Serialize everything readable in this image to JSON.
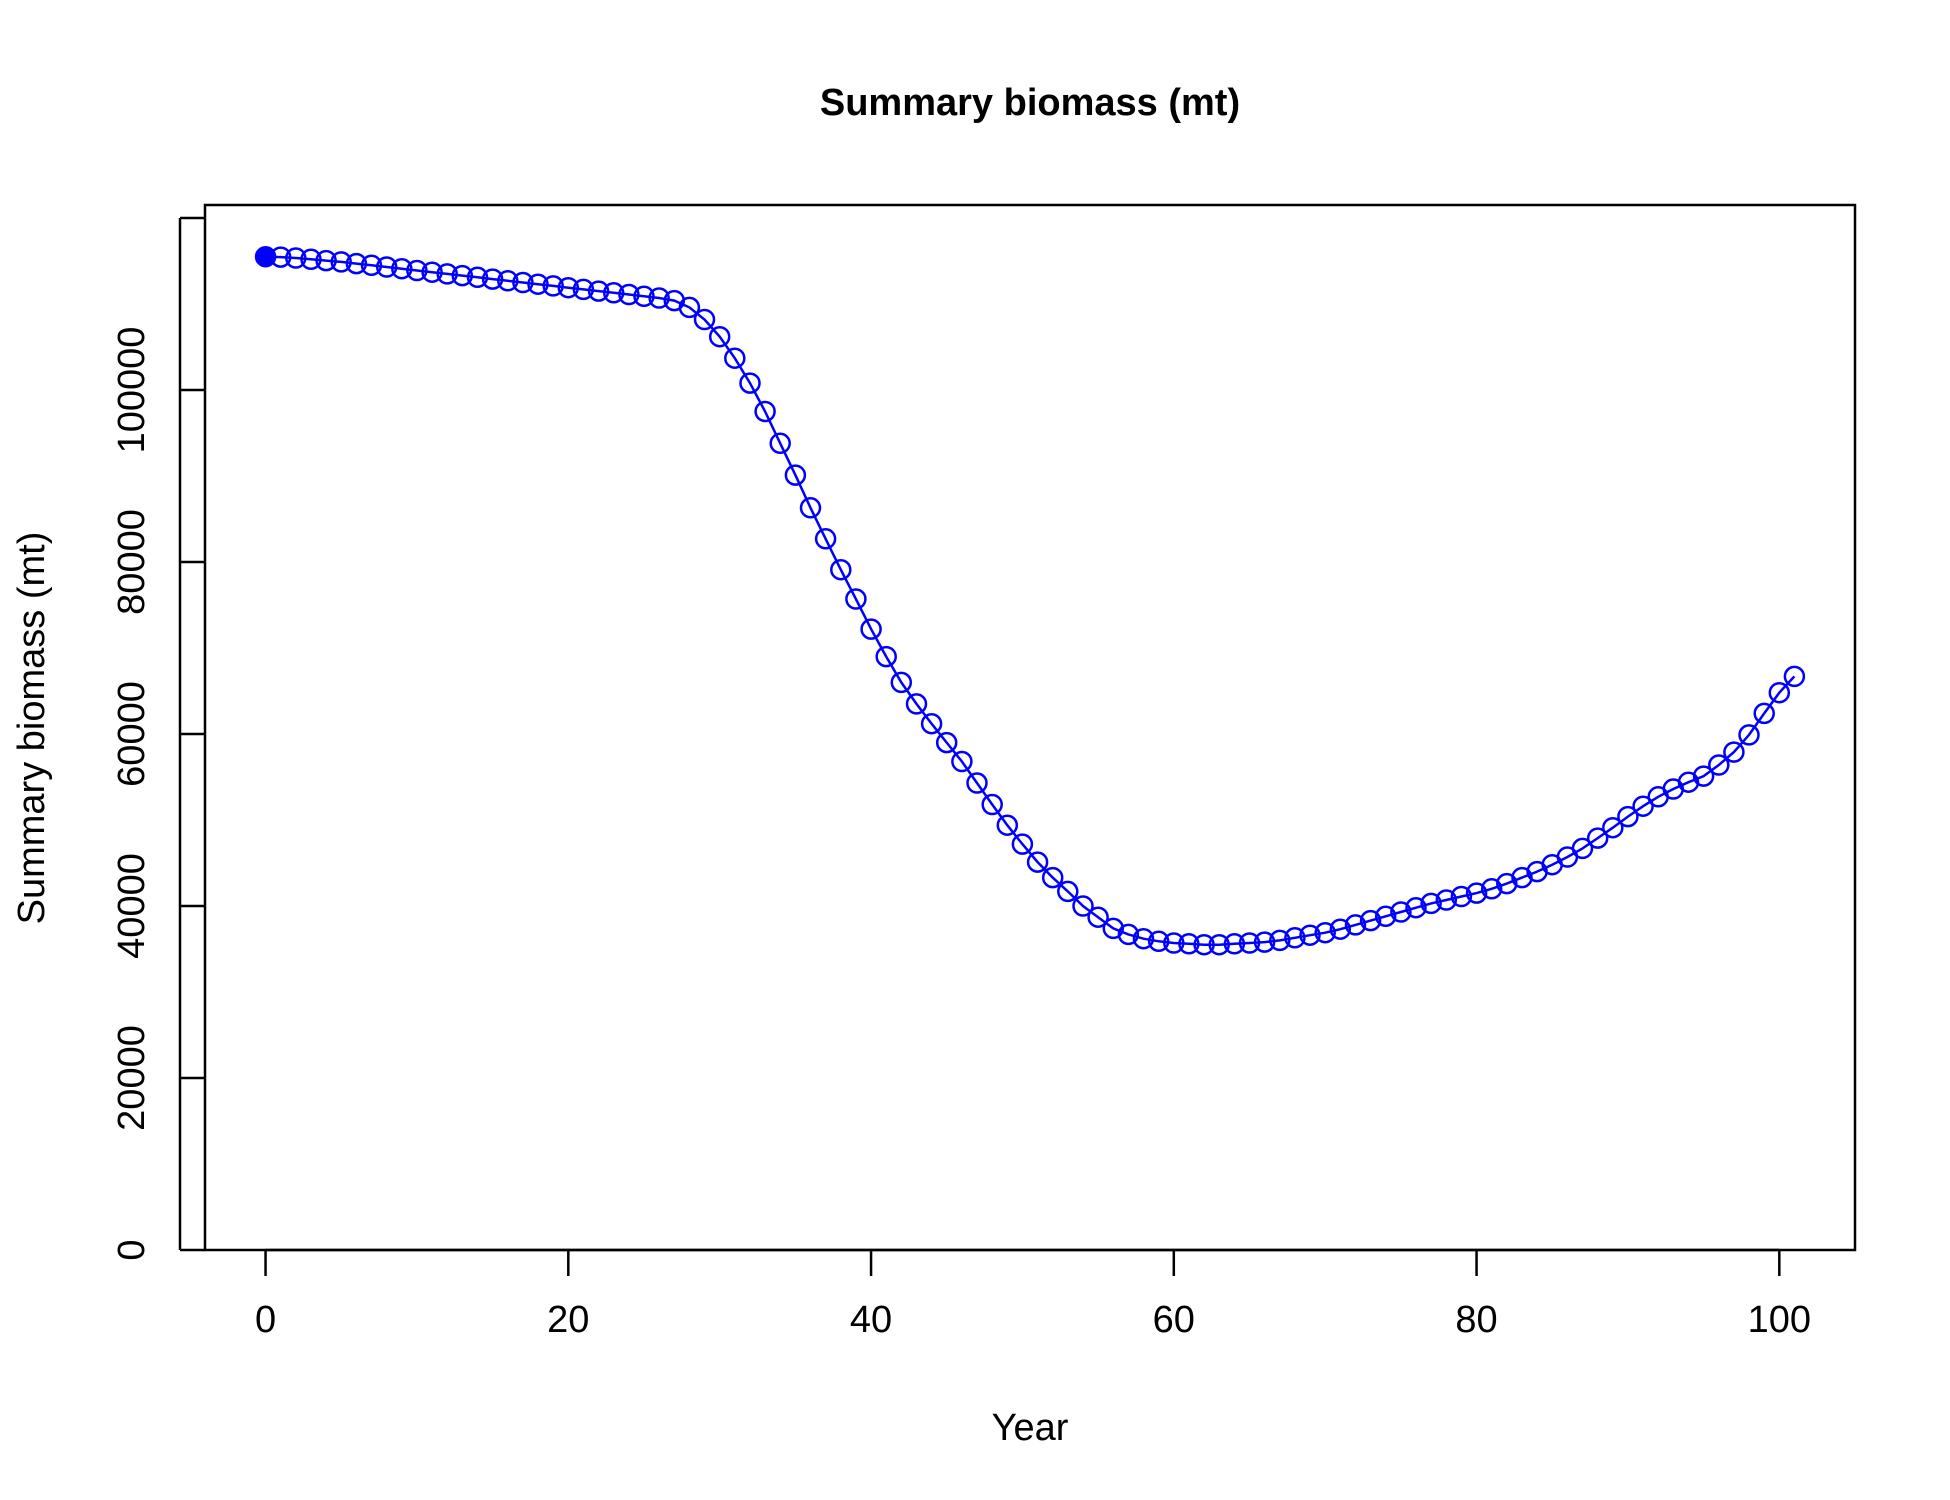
{
  "chart_data": {
    "type": "line",
    "title": "Summary biomass (mt)",
    "xlabel": "Year",
    "ylabel": "Summary biomass (mt)",
    "xlim": [
      -4,
      105
    ],
    "ylim": [
      0,
      120000
    ],
    "x_ticks": [
      0,
      20,
      40,
      60,
      80,
      100
    ],
    "y_ticks": [
      0,
      20000,
      40000,
      60000,
      80000,
      100000
    ],
    "grid": false,
    "legend": "none",
    "colors": {
      "series": "#0000ff",
      "axis": "#000000",
      "background": "#ffffff"
    },
    "markers": "open circles; first point filled",
    "series": [
      {
        "x": [
          0,
          1,
          2,
          3,
          4,
          5,
          6,
          7,
          8,
          9,
          10,
          11,
          12,
          13,
          14,
          15,
          16,
          17,
          18,
          19,
          20,
          21,
          22,
          23,
          24,
          25,
          26,
          27,
          28,
          29,
          30,
          31,
          32,
          33,
          34,
          35,
          36,
          37,
          38,
          39,
          40,
          41,
          42,
          43,
          44,
          45,
          46,
          47,
          48,
          49,
          50,
          51,
          52,
          53,
          54,
          55,
          56,
          57,
          58,
          59,
          60,
          61,
          62,
          63,
          64,
          65,
          66,
          67,
          68,
          69,
          70,
          71,
          72,
          73,
          74,
          75,
          76,
          77,
          78,
          79,
          80,
          81,
          82,
          83,
          84,
          85,
          86,
          87,
          88,
          89,
          90,
          91,
          92,
          93,
          94,
          95,
          96,
          97,
          98,
          99,
          100,
          101
        ],
        "values": [
          115500,
          115450,
          115350,
          115200,
          115050,
          114900,
          114700,
          114500,
          114300,
          114100,
          113900,
          113700,
          113500,
          113300,
          113100,
          112900,
          112700,
          112500,
          112300,
          112100,
          111900,
          111700,
          111500,
          111300,
          111100,
          110900,
          110700,
          110400,
          109600,
          108200,
          106200,
          103700,
          100800,
          97500,
          93800,
          90100,
          86300,
          82700,
          79100,
          75700,
          72200,
          69000,
          66000,
          63500,
          61200,
          59000,
          56800,
          54300,
          51800,
          49400,
          47200,
          45100,
          43300,
          41700,
          40000,
          38700,
          37400,
          36700,
          36200,
          35900,
          35700,
          35600,
          35500,
          35500,
          35600,
          35700,
          35800,
          36000,
          36300,
          36600,
          36900,
          37300,
          37800,
          38300,
          38800,
          39300,
          39800,
          40300,
          40700,
          41100,
          41500,
          42000,
          42600,
          43300,
          44000,
          44800,
          45700,
          46700,
          47900,
          49100,
          50400,
          51600,
          52700,
          53600,
          54400,
          55100,
          56400,
          57900,
          59900,
          62400,
          64800,
          66700
        ]
      }
    ]
  }
}
